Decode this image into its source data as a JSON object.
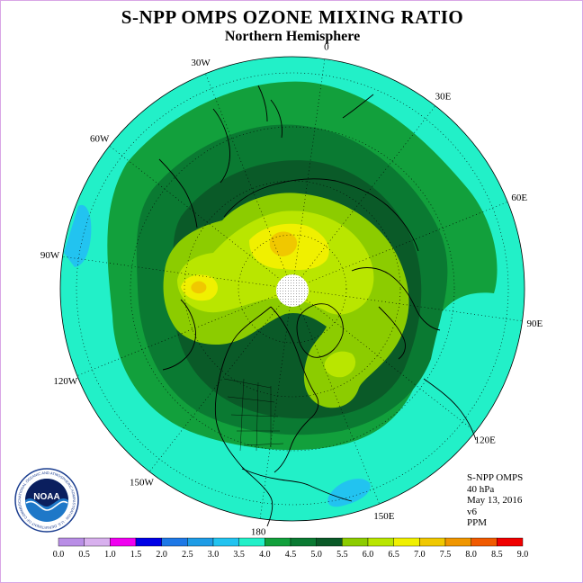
{
  "title": "S-NPP OMPS OZONE MIXING RATIO",
  "subtitle": "Northern Hemisphere",
  "longitude_labels": [
    {
      "text": "90E",
      "lon": 90
    },
    {
      "text": "60E",
      "lon": 60
    },
    {
      "text": "30E",
      "lon": 30
    },
    {
      "text": "0",
      "lon": 0
    },
    {
      "text": "30W",
      "lon": -30
    },
    {
      "text": "60W",
      "lon": -60
    },
    {
      "text": "90W",
      "lon": -90
    },
    {
      "text": "120W",
      "lon": -120
    },
    {
      "text": "150W",
      "lon": -150
    },
    {
      "text": "180",
      "lon": 180
    },
    {
      "text": "150E",
      "lon": 150
    },
    {
      "text": "120E",
      "lon": 120
    }
  ],
  "info": {
    "instrument": "S-NPP OMPS",
    "level": "40 hPa",
    "date": "May 13, 2016",
    "version": "v6",
    "units": "PPM"
  },
  "colorbar": {
    "ticks": [
      "0.0",
      "0.5",
      "1.0",
      "1.5",
      "2.0",
      "2.5",
      "3.0",
      "3.5",
      "4.0",
      "4.5",
      "5.0",
      "5.5",
      "6.0",
      "6.5",
      "7.0",
      "7.5",
      "8.0",
      "8.5",
      "9.0"
    ],
    "colors": [
      "#b98ee6",
      "#d8b0ee",
      "#f000f0",
      "#0000e6",
      "#1e78e6",
      "#1e9ce6",
      "#22c3f0",
      "#22f0c8",
      "#12a03c",
      "#0a7a32",
      "#0a5a28",
      "#8ccc00",
      "#b9e600",
      "#f0f000",
      "#f0c800",
      "#f09600",
      "#f05a00",
      "#f00000",
      "#8c5a46"
    ]
  },
  "logo": {
    "text": "NOAA",
    "ring_text": "NATIONAL OCEANIC AND ATMOSPHERIC ADMINISTRATION · U.S. DEPARTMENT OF COMMERCE"
  },
  "map_colors": {
    "c35": "#22f0c8",
    "c40": "#12a03c",
    "c45": "#0a7a32",
    "c50": "#0a5a28",
    "c55": "#8ccc00",
    "c60": "#b9e600",
    "c65": "#f0f000",
    "c70": "#f0c800",
    "c30": "#22c3f0"
  }
}
